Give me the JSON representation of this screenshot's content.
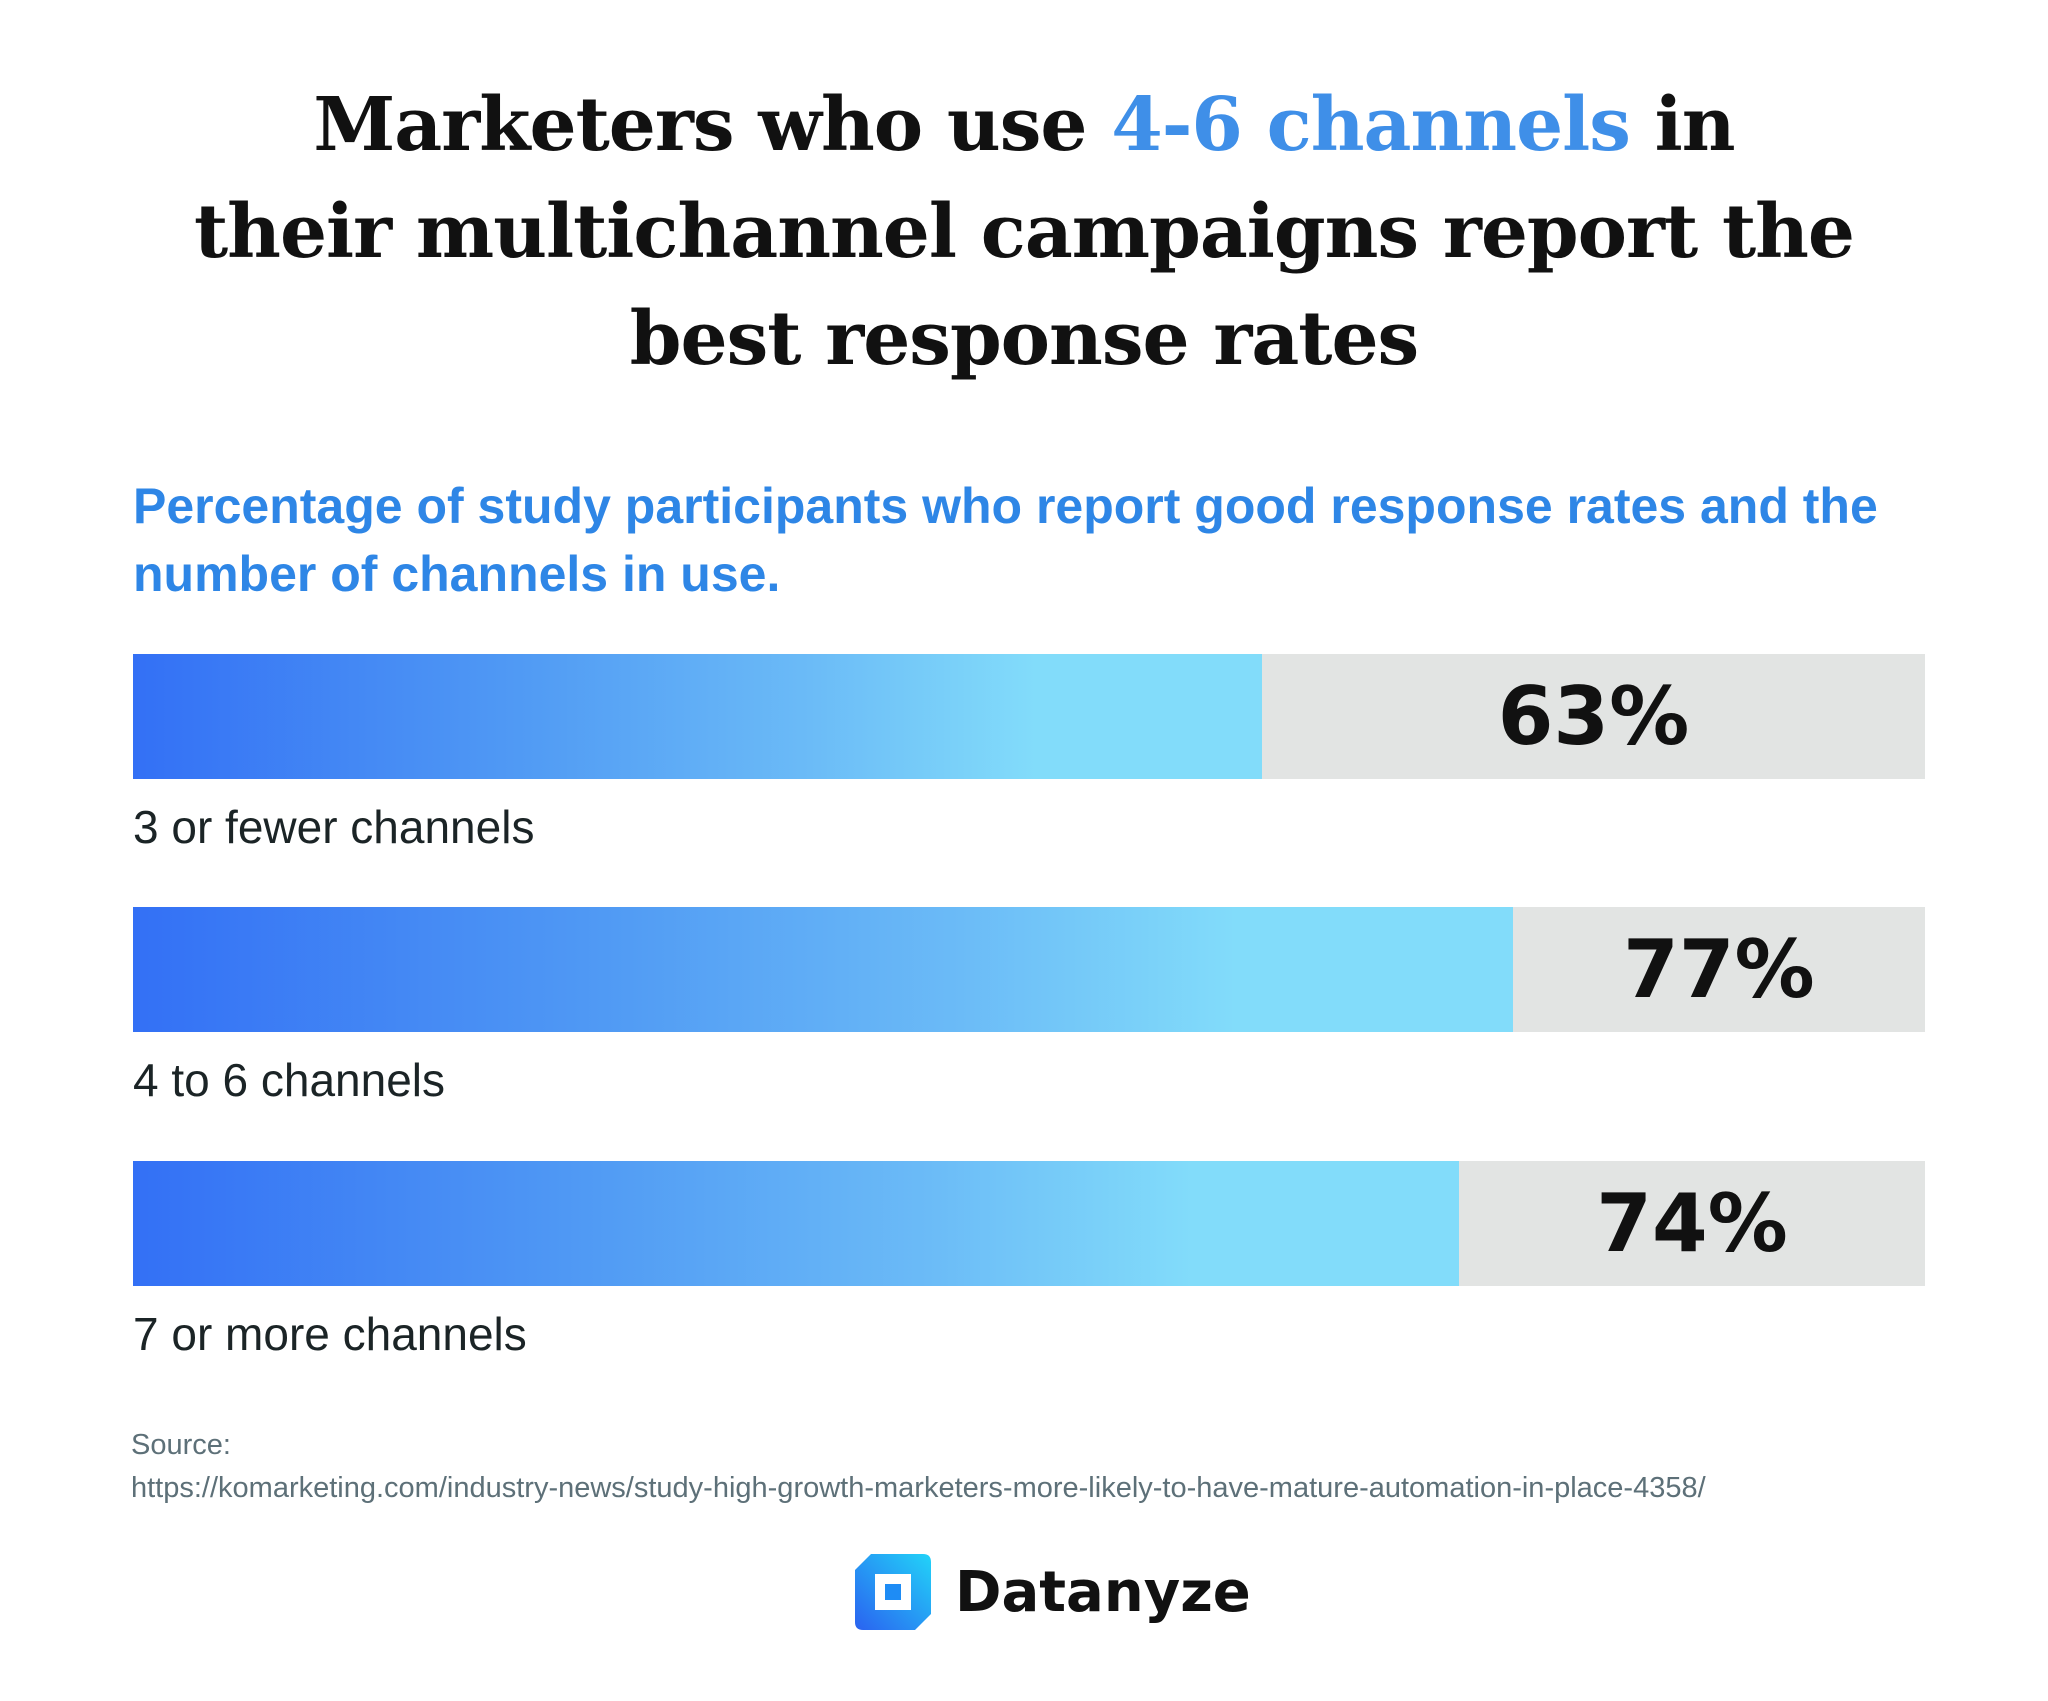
{
  "title": {
    "part1": "Marketers who use ",
    "highlight": "4-6 channels",
    "part2": " in",
    "line2": "their multichannel campaigns report the",
    "line3": "best response rates"
  },
  "colors": {
    "highlight": "#3f8fe8",
    "fill_start": "#3370f5",
    "fill_end": "#82dcfa",
    "track": "#e2e4e3"
  },
  "chart_data": {
    "type": "bar",
    "orientation": "horizontal",
    "title": "Percentage of study participants who report good response rates and the number of channels in use.",
    "categories": [
      "3 or fewer channels",
      "4 to 6 channels",
      "7 or more channels"
    ],
    "values": [
      63,
      77,
      74
    ],
    "value_labels": [
      "63%",
      "77%",
      "74%"
    ],
    "xlim": [
      0,
      100
    ],
    "grid": false
  },
  "source": {
    "label": "Source:",
    "url": "https://komarketing.com/industry-news/study-high-growth-marketers-more-likely-to-have-mature-automation-in-place-4358/"
  },
  "logo": {
    "text": "Datanyze",
    "icon": "datanyze-d-logo-icon"
  }
}
